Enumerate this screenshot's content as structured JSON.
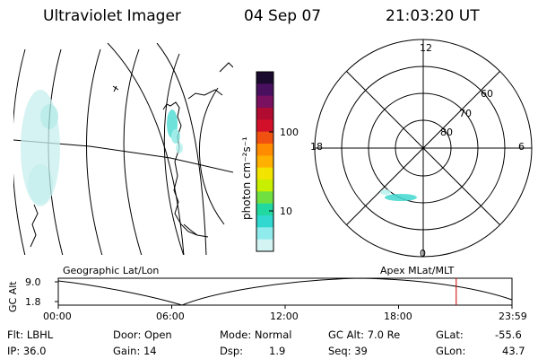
{
  "header": {
    "title": "Ultraviolet Imager",
    "date": "04 Sep 07",
    "time": "21:03:20 UT"
  },
  "colorbar": {
    "unit_label": "photon cm⁻²s⁻¹",
    "ticks": [
      "100",
      "10"
    ],
    "colors": [
      "#1a0b2e",
      "#4a1060",
      "#7a1060",
      "#b00b30",
      "#d2102a",
      "#f05010",
      "#ff8c00",
      "#ffb000",
      "#f2e400",
      "#c8ee00",
      "#70e040",
      "#20d8a0",
      "#30d8d0",
      "#90ecec",
      "#d4f4f4"
    ]
  },
  "geo_map": {
    "labels": [
      "Geographic Lat/Lon"
    ]
  },
  "polar_plot": {
    "hour_labels": [
      "12",
      "18",
      "6",
      "0"
    ],
    "lat_labels": [
      "60",
      "70",
      "80"
    ],
    "label": "Apex MLat/MLT"
  },
  "altitude_plot": {
    "ylabel": "GC Alt",
    "yticks": [
      "9.0",
      "1.8"
    ],
    "xticks": [
      "00:00",
      "06:00",
      "12:00",
      "18:00",
      "23:59"
    ],
    "marker_time": "21:03",
    "marker_color": "#cc0000"
  },
  "info": {
    "flt": "Flt: LBHL",
    "ip": "IP: 36.0",
    "door": "Door: Open",
    "gain": "Gain: 14",
    "mode": "Mode: Normal",
    "dsp_label": "Dsp:",
    "dsp_value": "1.9",
    "gc_alt": "GC Alt: 7.0 Re",
    "seq": "Seq: 39",
    "glat_label": "GLat:",
    "glat_value": "-55.6",
    "glon_label": "GLon:",
    "glon_value": "43.7"
  }
}
